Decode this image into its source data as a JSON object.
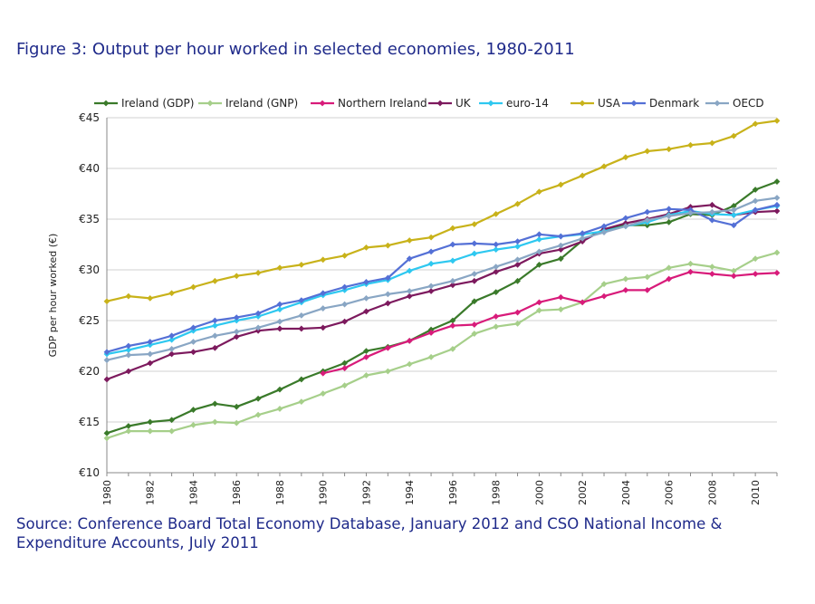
{
  "figure_title": "Figure 3: Output per hour worked in selected economies, 1980-2011",
  "source_line1": "Source: Conference Board Total Economy Database, January 2012 and CSO National Income &",
  "source_line2": "Expenditure Accounts, July 2011",
  "chart_data": {
    "type": "line",
    "title": "Figure 3: Output per hour worked in selected economies, 1980-2011",
    "xlabel": "",
    "ylabel": "GDP per hour worked (€)",
    "ylim": [
      10,
      45
    ],
    "xlim": [
      1980,
      2011
    ],
    "yticks": [
      "€10",
      "€15",
      "€20",
      "€25",
      "€30",
      "€35",
      "€40",
      "€45"
    ],
    "xticks": [
      "1980",
      "1982",
      "1984",
      "1986",
      "1988",
      "1990",
      "1992",
      "1994",
      "1996",
      "1998",
      "2000",
      "2002",
      "2004",
      "2006",
      "2008",
      "2010"
    ],
    "grid": true,
    "legend_position": "top",
    "x": [
      1980,
      1981,
      1982,
      1983,
      1984,
      1985,
      1986,
      1987,
      1988,
      1989,
      1990,
      1991,
      1992,
      1993,
      1994,
      1995,
      1996,
      1997,
      1998,
      1999,
      2000,
      2001,
      2002,
      2003,
      2004,
      2005,
      2006,
      2007,
      2008,
      2009,
      2010,
      2011
    ],
    "series": [
      {
        "name": "Ireland (GDP)",
        "color": "#3a7a2a",
        "values": [
          13.9,
          14.6,
          15.0,
          15.2,
          16.2,
          16.8,
          16.5,
          17.3,
          18.2,
          19.2,
          20.0,
          20.8,
          22.0,
          22.4,
          23.0,
          24.1,
          25.0,
          26.9,
          27.8,
          28.9,
          30.5,
          31.1,
          32.9,
          34.0,
          34.4,
          34.4,
          34.7,
          35.5,
          35.4,
          36.3,
          37.9,
          38.7
        ]
      },
      {
        "name": "Ireland (GNP)",
        "color": "#a6cf8a",
        "values": [
          13.4,
          14.1,
          14.1,
          14.1,
          14.7,
          15.0,
          14.9,
          15.7,
          16.3,
          17.0,
          17.8,
          18.6,
          19.6,
          20.0,
          20.7,
          21.4,
          22.2,
          23.7,
          24.4,
          24.7,
          26.0,
          26.1,
          26.8,
          28.6,
          29.1,
          29.3,
          30.2,
          30.6,
          30.3,
          29.9,
          31.1,
          31.7
        ]
      },
      {
        "name": "Northern Ireland",
        "color": "#d81b7a",
        "values": [
          null,
          null,
          null,
          null,
          null,
          null,
          null,
          null,
          null,
          null,
          19.8,
          20.3,
          21.4,
          22.3,
          23.0,
          23.8,
          24.5,
          24.6,
          25.4,
          25.8,
          26.8,
          27.3,
          26.8,
          27.4,
          28.0,
          28.0,
          29.1,
          29.8,
          29.6,
          29.4,
          29.6,
          29.7
        ]
      },
      {
        "name": "UK",
        "color": "#7d1a5e",
        "values": [
          19.2,
          20.0,
          20.8,
          21.7,
          21.9,
          22.3,
          23.4,
          24.0,
          24.2,
          24.2,
          24.3,
          24.9,
          25.9,
          26.7,
          27.4,
          27.9,
          28.5,
          28.9,
          29.8,
          30.5,
          31.6,
          32.0,
          32.8,
          34.0,
          34.6,
          35.0,
          35.5,
          36.2,
          36.4,
          35.4,
          35.7,
          35.8
        ]
      },
      {
        "name": "euro-14",
        "color": "#2ec8f0",
        "values": [
          21.7,
          22.1,
          22.6,
          23.1,
          24.0,
          24.5,
          25.0,
          25.4,
          26.1,
          26.8,
          27.5,
          28.0,
          28.6,
          29.0,
          29.9,
          30.6,
          30.9,
          31.6,
          32.0,
          32.3,
          33.0,
          33.3,
          33.5,
          33.8,
          34.3,
          34.7,
          35.4,
          35.8,
          35.5,
          35.4,
          35.9,
          36.3
        ]
      },
      {
        "name": "USA",
        "color": "#c8b21a",
        "values": [
          26.9,
          27.4,
          27.2,
          27.7,
          28.3,
          28.9,
          29.4,
          29.7,
          30.2,
          30.5,
          31.0,
          31.4,
          32.2,
          32.4,
          32.9,
          33.2,
          34.1,
          34.5,
          35.5,
          36.5,
          37.7,
          38.4,
          39.3,
          40.2,
          41.1,
          41.7,
          41.9,
          42.3,
          42.5,
          43.2,
          44.4,
          44.7
        ]
      },
      {
        "name": "Denmark",
        "color": "#5470d6",
        "values": [
          21.9,
          22.5,
          22.9,
          23.5,
          24.3,
          25.0,
          25.3,
          25.7,
          26.6,
          27.0,
          27.7,
          28.3,
          28.8,
          29.2,
          31.1,
          31.8,
          32.5,
          32.6,
          32.5,
          32.8,
          33.5,
          33.3,
          33.6,
          34.3,
          35.1,
          35.7,
          36.0,
          35.9,
          34.9,
          34.4,
          35.9,
          36.4
        ]
      },
      {
        "name": "OECD",
        "color": "#89a6c4",
        "values": [
          21.1,
          21.6,
          21.7,
          22.2,
          22.9,
          23.5,
          23.9,
          24.3,
          24.9,
          25.5,
          26.2,
          26.6,
          27.2,
          27.6,
          27.9,
          28.4,
          28.9,
          29.6,
          30.3,
          31.0,
          31.8,
          32.4,
          33.1,
          33.7,
          34.3,
          34.9,
          35.3,
          35.6,
          35.7,
          35.9,
          36.8,
          37.1
        ]
      }
    ]
  }
}
